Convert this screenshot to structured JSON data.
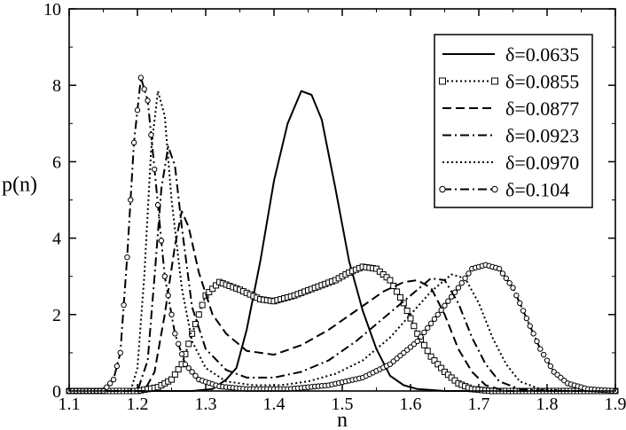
{
  "chart_data": {
    "type": "line",
    "title": "",
    "xlabel": "n",
    "ylabel": "p(n)",
    "xlim": [
      1.1,
      1.9
    ],
    "ylim": [
      0,
      10
    ],
    "x_ticks": [
      "1.1",
      "1.2",
      "1.3",
      "1.4",
      "1.5",
      "1.6",
      "1.7",
      "1.8",
      "1.9"
    ],
    "y_ticks": [
      "0",
      "2",
      "4",
      "6",
      "8",
      "10"
    ],
    "grid": false,
    "legend_position": "top-right",
    "series": [
      {
        "name": "δ=0.0635",
        "style": "solid",
        "marker": "none",
        "points": [
          [
            1.1,
            0
          ],
          [
            1.28,
            0
          ],
          [
            1.31,
            0.05
          ],
          [
            1.33,
            0.3
          ],
          [
            1.345,
            0.6
          ],
          [
            1.36,
            1.6
          ],
          [
            1.38,
            3.4
          ],
          [
            1.4,
            5.5
          ],
          [
            1.42,
            7.0
          ],
          [
            1.44,
            7.85
          ],
          [
            1.455,
            7.75
          ],
          [
            1.47,
            7.1
          ],
          [
            1.49,
            5.3
          ],
          [
            1.51,
            3.4
          ],
          [
            1.53,
            2.1
          ],
          [
            1.55,
            1.1
          ],
          [
            1.57,
            0.4
          ],
          [
            1.59,
            0.15
          ],
          [
            1.61,
            0.05
          ],
          [
            1.65,
            0
          ],
          [
            1.9,
            0
          ]
        ]
      },
      {
        "name": "δ=0.0855",
        "style": "dotted",
        "marker": "square",
        "points": [
          [
            1.1,
            0
          ],
          [
            1.2,
            0
          ],
          [
            1.23,
            0.1
          ],
          [
            1.25,
            0.3
          ],
          [
            1.265,
            0.7
          ],
          [
            1.28,
            1.5
          ],
          [
            1.3,
            2.5
          ],
          [
            1.32,
            2.85
          ],
          [
            1.35,
            2.65
          ],
          [
            1.38,
            2.4
          ],
          [
            1.4,
            2.35
          ],
          [
            1.43,
            2.5
          ],
          [
            1.46,
            2.7
          ],
          [
            1.49,
            2.9
          ],
          [
            1.51,
            3.1
          ],
          [
            1.53,
            3.25
          ],
          [
            1.55,
            3.2
          ],
          [
            1.57,
            2.9
          ],
          [
            1.59,
            2.3
          ],
          [
            1.61,
            1.5
          ],
          [
            1.63,
            0.9
          ],
          [
            1.65,
            0.5
          ],
          [
            1.67,
            0.2
          ],
          [
            1.69,
            0.05
          ],
          [
            1.72,
            0
          ],
          [
            1.9,
            0
          ]
        ]
      },
      {
        "name": "δ=0.0877",
        "style": "dashed",
        "marker": "none",
        "points": [
          [
            1.1,
            0
          ],
          [
            1.21,
            0
          ],
          [
            1.225,
            0.5
          ],
          [
            1.24,
            2.0
          ],
          [
            1.255,
            3.8
          ],
          [
            1.265,
            4.7
          ],
          [
            1.275,
            4.3
          ],
          [
            1.29,
            3.1
          ],
          [
            1.31,
            2.0
          ],
          [
            1.33,
            1.5
          ],
          [
            1.36,
            1.05
          ],
          [
            1.4,
            0.95
          ],
          [
            1.44,
            1.2
          ],
          [
            1.48,
            1.6
          ],
          [
            1.52,
            2.1
          ],
          [
            1.56,
            2.6
          ],
          [
            1.59,
            2.85
          ],
          [
            1.61,
            2.9
          ],
          [
            1.63,
            2.7
          ],
          [
            1.65,
            2.0
          ],
          [
            1.67,
            1.1
          ],
          [
            1.69,
            0.5
          ],
          [
            1.71,
            0.15
          ],
          [
            1.74,
            0
          ],
          [
            1.9,
            0
          ]
        ]
      },
      {
        "name": "δ=0.0923",
        "style": "dashdot",
        "marker": "none",
        "points": [
          [
            1.1,
            0
          ],
          [
            1.2,
            0
          ],
          [
            1.215,
            0.8
          ],
          [
            1.225,
            3.0
          ],
          [
            1.235,
            5.3
          ],
          [
            1.245,
            6.4
          ],
          [
            1.255,
            5.9
          ],
          [
            1.265,
            4.3
          ],
          [
            1.28,
            2.2
          ],
          [
            1.3,
            1.1
          ],
          [
            1.33,
            0.55
          ],
          [
            1.36,
            0.35
          ],
          [
            1.4,
            0.35
          ],
          [
            1.44,
            0.5
          ],
          [
            1.48,
            0.8
          ],
          [
            1.52,
            1.3
          ],
          [
            1.56,
            1.9
          ],
          [
            1.6,
            2.5
          ],
          [
            1.63,
            2.95
          ],
          [
            1.65,
            2.9
          ],
          [
            1.67,
            2.3
          ],
          [
            1.69,
            1.4
          ],
          [
            1.71,
            0.7
          ],
          [
            1.73,
            0.25
          ],
          [
            1.76,
            0.05
          ],
          [
            1.8,
            0
          ],
          [
            1.9,
            0
          ]
        ]
      },
      {
        "name": "δ=0.0970",
        "style": "dotted",
        "marker": "none",
        "points": [
          [
            1.1,
            0
          ],
          [
            1.19,
            0
          ],
          [
            1.2,
            0.6
          ],
          [
            1.21,
            3.0
          ],
          [
            1.22,
            6.3
          ],
          [
            1.23,
            7.85
          ],
          [
            1.24,
            7.2
          ],
          [
            1.25,
            5.0
          ],
          [
            1.265,
            2.7
          ],
          [
            1.28,
            1.3
          ],
          [
            1.3,
            0.6
          ],
          [
            1.33,
            0.25
          ],
          [
            1.37,
            0.15
          ],
          [
            1.41,
            0.15
          ],
          [
            1.45,
            0.25
          ],
          [
            1.49,
            0.45
          ],
          [
            1.53,
            0.8
          ],
          [
            1.57,
            1.4
          ],
          [
            1.6,
            2.0
          ],
          [
            1.63,
            2.6
          ],
          [
            1.66,
            3.05
          ],
          [
            1.68,
            2.95
          ],
          [
            1.7,
            2.3
          ],
          [
            1.72,
            1.4
          ],
          [
            1.74,
            0.7
          ],
          [
            1.76,
            0.25
          ],
          [
            1.79,
            0.05
          ],
          [
            1.83,
            0
          ],
          [
            1.9,
            0
          ]
        ]
      },
      {
        "name": "δ=0.104",
        "style": "dashdot",
        "marker": "circle",
        "points": [
          [
            1.1,
            0
          ],
          [
            1.15,
            0
          ],
          [
            1.165,
            0.3
          ],
          [
            1.175,
            1.0
          ],
          [
            1.185,
            3.5
          ],
          [
            1.195,
            6.5
          ],
          [
            1.205,
            8.2
          ],
          [
            1.215,
            7.6
          ],
          [
            1.225,
            5.8
          ],
          [
            1.24,
            3.0
          ],
          [
            1.255,
            1.5
          ],
          [
            1.27,
            0.7
          ],
          [
            1.29,
            0.3
          ],
          [
            1.32,
            0.12
          ],
          [
            1.36,
            0.05
          ],
          [
            1.42,
            0.05
          ],
          [
            1.48,
            0.15
          ],
          [
            1.53,
            0.35
          ],
          [
            1.57,
            0.7
          ],
          [
            1.61,
            1.3
          ],
          [
            1.64,
            2.0
          ],
          [
            1.67,
            2.7
          ],
          [
            1.69,
            3.2
          ],
          [
            1.71,
            3.3
          ],
          [
            1.73,
            3.2
          ],
          [
            1.75,
            2.7
          ],
          [
            1.77,
            1.9
          ],
          [
            1.79,
            1.1
          ],
          [
            1.81,
            0.5
          ],
          [
            1.83,
            0.2
          ],
          [
            1.86,
            0.05
          ],
          [
            1.9,
            0
          ]
        ]
      }
    ]
  }
}
